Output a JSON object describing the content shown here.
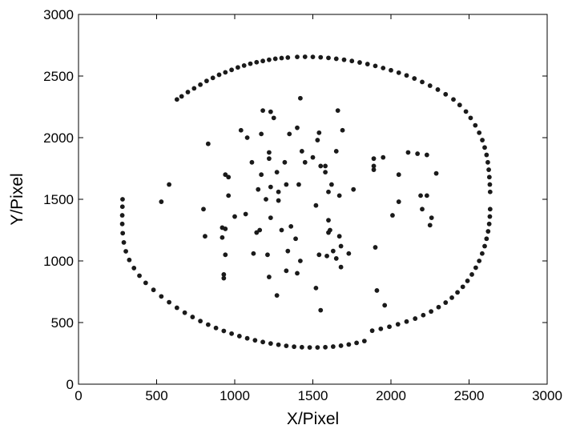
{
  "chart_data": {
    "type": "scatter",
    "title": "",
    "xlabel": "X/Pixel",
    "ylabel": "Y/Pixel",
    "xlim": [
      0,
      3000
    ],
    "ylim": [
      0,
      3000
    ],
    "xticks": [
      0,
      500,
      1000,
      1500,
      2000,
      2500,
      3000
    ],
    "yticks": [
      0,
      500,
      1000,
      1500,
      2000,
      2500,
      3000
    ],
    "xtick_labels": [
      "0",
      "500",
      "1000",
      "1500",
      "2000",
      "2500",
      "3000"
    ],
    "ytick_labels": [
      "0",
      "500",
      "1000",
      "1500",
      "2000",
      "2500",
      "3000"
    ],
    "grid": false,
    "marker_color": "#1a1a1a",
    "series": [
      {
        "name": "",
        "points": [
          [
            630,
            2310
          ],
          [
            660,
            2335
          ],
          [
            700,
            2370
          ],
          [
            740,
            2400
          ],
          [
            780,
            2430
          ],
          [
            820,
            2460
          ],
          [
            860,
            2485
          ],
          [
            900,
            2510
          ],
          [
            940,
            2530
          ],
          [
            980,
            2550
          ],
          [
            1020,
            2570
          ],
          [
            1060,
            2585
          ],
          [
            1100,
            2600
          ],
          [
            1140,
            2612
          ],
          [
            1180,
            2622
          ],
          [
            1220,
            2632
          ],
          [
            1260,
            2640
          ],
          [
            1300,
            2646
          ],
          [
            1340,
            2650
          ],
          [
            1400,
            2655
          ],
          [
            1450,
            2656
          ],
          [
            1500,
            2655
          ],
          [
            1550,
            2652
          ],
          [
            1600,
            2647
          ],
          [
            1650,
            2640
          ],
          [
            1700,
            2632
          ],
          [
            1750,
            2622
          ],
          [
            1800,
            2610
          ],
          [
            1850,
            2597
          ],
          [
            1900,
            2582
          ],
          [
            1950,
            2565
          ],
          [
            2000,
            2547
          ],
          [
            2050,
            2527
          ],
          [
            2100,
            2505
          ],
          [
            2150,
            2480
          ],
          [
            2200,
            2452
          ],
          [
            2250,
            2422
          ],
          [
            2300,
            2390
          ],
          [
            2350,
            2352
          ],
          [
            2400,
            2310
          ],
          [
            2440,
            2265
          ],
          [
            2480,
            2212
          ],
          [
            2510,
            2160
          ],
          [
            2540,
            2100
          ],
          [
            2565,
            2040
          ],
          [
            2585,
            1980
          ],
          [
            2600,
            1920
          ],
          [
            2612,
            1860
          ],
          [
            2620,
            1800
          ],
          [
            2626,
            1740
          ],
          [
            2630,
            1680
          ],
          [
            2633,
            1620
          ],
          [
            2635,
            1560
          ],
          [
            2635,
            1420
          ],
          [
            2633,
            1360
          ],
          [
            2629,
            1300
          ],
          [
            2622,
            1240
          ],
          [
            2612,
            1180
          ],
          [
            2600,
            1120
          ],
          [
            2584,
            1060
          ],
          [
            2565,
            1000
          ],
          [
            2543,
            945
          ],
          [
            2518,
            890
          ],
          [
            2490,
            838
          ],
          [
            2460,
            790
          ],
          [
            2426,
            745
          ],
          [
            2390,
            702
          ],
          [
            2350,
            662
          ],
          [
            2305,
            625
          ],
          [
            2257,
            590
          ],
          [
            2207,
            560
          ],
          [
            2155,
            532
          ],
          [
            2100,
            508
          ],
          [
            2045,
            486
          ],
          [
            1990,
            466
          ],
          [
            1935,
            449
          ],
          [
            1880,
            434
          ],
          [
            1830,
            350
          ],
          [
            1780,
            335
          ],
          [
            1730,
            322
          ],
          [
            1680,
            312
          ],
          [
            1630,
            305
          ],
          [
            1580,
            300
          ],
          [
            1530,
            298
          ],
          [
            1480,
            298
          ],
          [
            1430,
            300
          ],
          [
            1380,
            304
          ],
          [
            1330,
            311
          ],
          [
            1280,
            320
          ],
          [
            1230,
            330
          ],
          [
            1180,
            342
          ],
          [
            1130,
            356
          ],
          [
            1080,
            372
          ],
          [
            1030,
            390
          ],
          [
            980,
            410
          ],
          [
            930,
            432
          ],
          [
            880,
            456
          ],
          [
            830,
            483
          ],
          [
            780,
            512
          ],
          [
            730,
            545
          ],
          [
            680,
            580
          ],
          [
            630,
            620
          ],
          [
            580,
            665
          ],
          [
            530,
            712
          ],
          [
            480,
            765
          ],
          [
            430,
            822
          ],
          [
            390,
            880
          ],
          [
            355,
            942
          ],
          [
            325,
            1008
          ],
          [
            303,
            1078
          ],
          [
            290,
            1150
          ],
          [
            283,
            1225
          ],
          [
            280,
            1300
          ],
          [
            280,
            1370
          ],
          [
            281,
            1440
          ],
          [
            282,
            1500
          ],
          [
            1230,
            2210
          ],
          [
            1420,
            2320
          ],
          [
            1660,
            2220
          ],
          [
            1250,
            2160
          ],
          [
            1180,
            2220
          ],
          [
            1400,
            2080
          ],
          [
            1350,
            2030
          ],
          [
            1540,
            2040
          ],
          [
            1690,
            2060
          ],
          [
            1040,
            2060
          ],
          [
            1080,
            2000
          ],
          [
            1170,
            2030
          ],
          [
            830,
            1950
          ],
          [
            1530,
            1980
          ],
          [
            1220,
            1880
          ],
          [
            1430,
            1890
          ],
          [
            1500,
            1840
          ],
          [
            1650,
            1890
          ],
          [
            1890,
            1830
          ],
          [
            1950,
            1840
          ],
          [
            2110,
            1880
          ],
          [
            2170,
            1870
          ],
          [
            2230,
            1860
          ],
          [
            1110,
            1800
          ],
          [
            1220,
            1830
          ],
          [
            1320,
            1800
          ],
          [
            1450,
            1800
          ],
          [
            1550,
            1770
          ],
          [
            1580,
            1770
          ],
          [
            1890,
            1770
          ],
          [
            1890,
            1740
          ],
          [
            2050,
            1700
          ],
          [
            2290,
            1710
          ],
          [
            940,
            1700
          ],
          [
            960,
            1680
          ],
          [
            1170,
            1700
          ],
          [
            1270,
            1720
          ],
          [
            1580,
            1720
          ],
          [
            1330,
            1620
          ],
          [
            1410,
            1620
          ],
          [
            1620,
            1620
          ],
          [
            1760,
            1580
          ],
          [
            1150,
            1580
          ],
          [
            1230,
            1600
          ],
          [
            1280,
            1560
          ],
          [
            1600,
            1560
          ],
          [
            1670,
            1530
          ],
          [
            2190,
            1530
          ],
          [
            2230,
            1530
          ],
          [
            960,
            1530
          ],
          [
            1200,
            1500
          ],
          [
            1280,
            1490
          ],
          [
            530,
            1480
          ],
          [
            580,
            1620
          ],
          [
            800,
            1420
          ],
          [
            1070,
            1380
          ],
          [
            2010,
            1370
          ],
          [
            2200,
            1420
          ],
          [
            2260,
            1350
          ],
          [
            2050,
            1480
          ],
          [
            1520,
            1450
          ],
          [
            1600,
            1330
          ],
          [
            1000,
            1360
          ],
          [
            1230,
            1350
          ],
          [
            940,
            1260
          ],
          [
            920,
            1270
          ],
          [
            810,
            1200
          ],
          [
            920,
            1190
          ],
          [
            1140,
            1230
          ],
          [
            1160,
            1250
          ],
          [
            1300,
            1250
          ],
          [
            1360,
            1280
          ],
          [
            1600,
            1230
          ],
          [
            1610,
            1250
          ],
          [
            1670,
            1200
          ],
          [
            1390,
            1180
          ],
          [
            1680,
            1120
          ],
          [
            1900,
            1110
          ],
          [
            2250,
            1290
          ],
          [
            940,
            1050
          ],
          [
            1120,
            1060
          ],
          [
            1210,
            1050
          ],
          [
            1340,
            1080
          ],
          [
            1420,
            1000
          ],
          [
            1540,
            1050
          ],
          [
            1630,
            1080
          ],
          [
            1650,
            1020
          ],
          [
            1730,
            1060
          ],
          [
            930,
            890
          ],
          [
            930,
            860
          ],
          [
            1220,
            870
          ],
          [
            1330,
            920
          ],
          [
            1400,
            900
          ],
          [
            1520,
            780
          ],
          [
            1550,
            600
          ],
          [
            1270,
            720
          ],
          [
            1910,
            760
          ],
          [
            1960,
            640
          ],
          [
            1590,
            1040
          ],
          [
            1680,
            950
          ]
        ]
      }
    ]
  }
}
